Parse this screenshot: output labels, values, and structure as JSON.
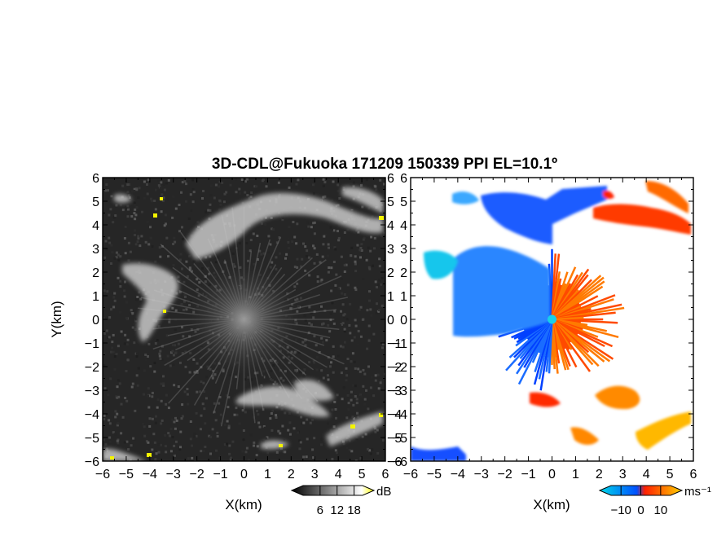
{
  "title": "3D-CDL@Fukuoka 171209 150339 PPI EL=10.1º",
  "chart_data": [
    {
      "type": "heatmap",
      "panel": "left",
      "quantity_unit": "dB",
      "xlabel": "X(km)",
      "ylabel": "Y(km)",
      "xlim": [
        -6,
        6
      ],
      "ylim": [
        -6,
        6
      ],
      "xticks": [
        -6,
        -5,
        -4,
        -3,
        -2,
        -1,
        0,
        1,
        2,
        3,
        4,
        5,
        6
      ],
      "yticks": [
        -6,
        -5,
        -4,
        -3,
        -2,
        -1,
        0,
        1,
        2,
        3,
        4,
        5,
        6
      ],
      "colorbar": {
        "ticks": [
          6,
          12,
          18
        ],
        "unit": "dB",
        "colors": [
          "#000000",
          "#ffffff",
          "#ffff00"
        ]
      }
    },
    {
      "type": "heatmap",
      "panel": "right",
      "quantity_unit": "ms⁻¹",
      "xlabel": "X(km)",
      "xlim": [
        -6,
        6
      ],
      "ylim": [
        -6,
        6
      ],
      "xticks": [
        -6,
        -5,
        -4,
        -3,
        -2,
        -1,
        0,
        1,
        2,
        3,
        4,
        5,
        6
      ],
      "yticks": [
        -6,
        -5,
        -4,
        -3,
        -2,
        -1,
        0,
        1,
        2,
        3,
        4,
        5,
        6
      ],
      "colorbar": {
        "ticks": [
          -10,
          0,
          10
        ],
        "unit": "ms⁻¹",
        "colors": [
          "#00d8e8",
          "#0050ff",
          "#ff2000",
          "#ffd000"
        ]
      }
    }
  ]
}
